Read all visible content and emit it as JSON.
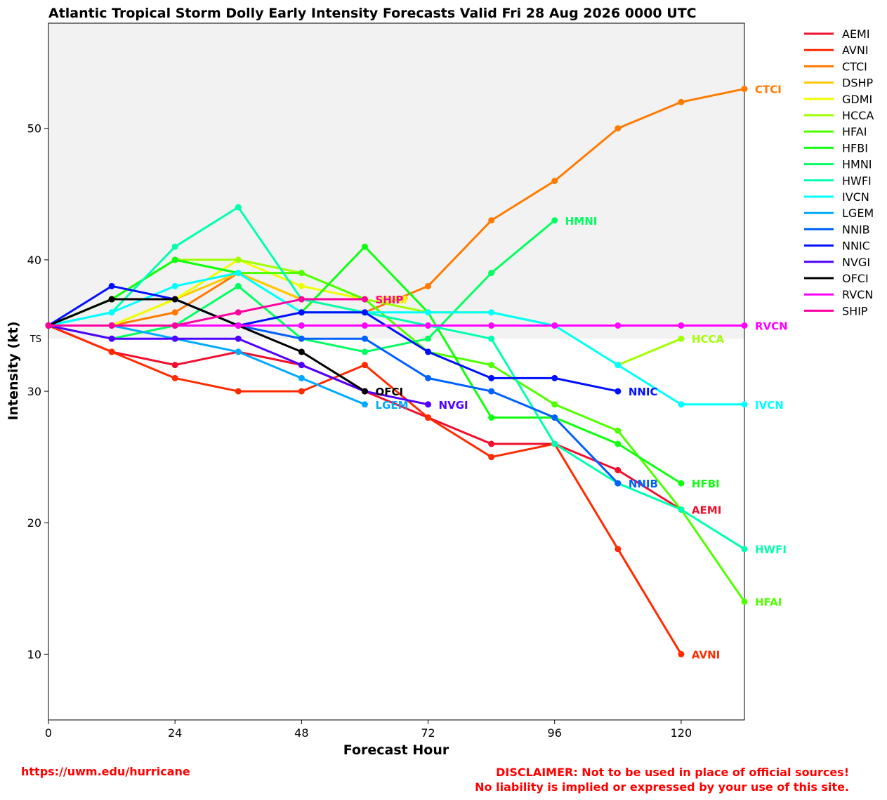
{
  "chart_data": {
    "type": "line",
    "title": "Atlantic Tropical Storm Dolly Early Intensity Forecasts Valid Fri 28 Aug 2026 0000 UTC",
    "xlabel": "Forecast Hour",
    "ylabel": "Intensity (kt)",
    "xlim": [
      0,
      132
    ],
    "ylim": [
      5,
      58
    ],
    "xticks": [
      0,
      24,
      48,
      72,
      96,
      120
    ],
    "yticks": [
      10,
      20,
      30,
      40,
      50
    ],
    "ts_threshold": 34,
    "ts_label": "TS",
    "shaded_region": "tropical storm range (34 kt and above)",
    "grid": false,
    "legend_position": "right, outside plot",
    "series": [
      {
        "name": "AEMI",
        "color": "#f0102e",
        "label_pos": "end",
        "x": [
          0,
          12,
          24,
          36,
          48,
          60,
          72,
          84,
          96,
          108,
          120
        ],
        "y": [
          35,
          33,
          32,
          33,
          32,
          30,
          28,
          26,
          26,
          24,
          21
        ]
      },
      {
        "name": "AVNI",
        "color": "#ff2a00",
        "label_pos": "end",
        "x": [
          0,
          12,
          24,
          36,
          48,
          60,
          72,
          84,
          96,
          108,
          120
        ],
        "y": [
          35,
          33,
          31,
          30,
          30,
          32,
          28,
          25,
          26,
          18,
          10
        ]
      },
      {
        "name": "CTCI",
        "color": "#ff7a00",
        "label_pos": "end",
        "x": [
          0,
          12,
          24,
          36,
          48,
          60,
          72,
          84,
          96,
          108,
          120,
          132
        ],
        "y": [
          35,
          35,
          36,
          39,
          37,
          36,
          38,
          43,
          46,
          50,
          52,
          53
        ]
      },
      {
        "name": "DSHP",
        "color": "#ffc800",
        "label_pos": "end",
        "x": [
          0,
          12,
          24,
          36,
          48,
          60
        ],
        "y": [
          35,
          35,
          37,
          39,
          37,
          37
        ]
      },
      {
        "name": "GDMI",
        "color": "#f0ff00",
        "label_pos": "end",
        "x": [
          0,
          12,
          24,
          36,
          48,
          60
        ],
        "y": [
          35,
          35,
          37,
          40,
          38,
          37
        ]
      },
      {
        "name": "HCCA",
        "color": "#a0ff00",
        "label_pos": "end",
        "x": [
          0,
          12,
          24,
          36,
          48,
          60,
          72,
          84,
          96,
          108,
          120
        ],
        "y": [
          35,
          37,
          40,
          40,
          39,
          37,
          36,
          36,
          35,
          32,
          34
        ]
      },
      {
        "name": "HFAI",
        "color": "#50ff00",
        "label_pos": "end",
        "x": [
          0,
          12,
          24,
          36,
          48,
          60,
          72,
          84,
          96,
          108,
          120,
          132
        ],
        "y": [
          35,
          37,
          40,
          39,
          39,
          37,
          33,
          32,
          29,
          27,
          21,
          14
        ]
      },
      {
        "name": "HFBI",
        "color": "#10ff10",
        "label_pos": "end",
        "x": [
          0,
          12,
          24,
          36,
          48,
          60,
          72,
          84,
          96,
          108,
          120
        ],
        "y": [
          35,
          37,
          40,
          39,
          36,
          41,
          36,
          28,
          28,
          26,
          23
        ]
      },
      {
        "name": "HMNI",
        "color": "#00ff60",
        "label_pos": "end",
        "x": [
          0,
          12,
          24,
          36,
          48,
          60,
          72,
          84,
          96
        ],
        "y": [
          35,
          34,
          35,
          38,
          34,
          33,
          34,
          39,
          43
        ]
      },
      {
        "name": "HWFI",
        "color": "#00ffb0",
        "label_pos": "end",
        "x": [
          0,
          12,
          24,
          36,
          48,
          60,
          72,
          84,
          96,
          108,
          120,
          132
        ],
        "y": [
          35,
          36,
          41,
          44,
          37,
          36,
          35,
          34,
          26,
          23,
          21,
          18
        ]
      },
      {
        "name": "IVCN",
        "color": "#00ffff",
        "label_pos": "end",
        "x": [
          0,
          12,
          24,
          36,
          48,
          60,
          72,
          84,
          96,
          108,
          120,
          132
        ],
        "y": [
          35,
          36,
          38,
          39,
          36,
          36,
          36,
          36,
          35,
          32,
          29,
          29
        ]
      },
      {
        "name": "LGEM",
        "color": "#00aaff",
        "label_pos": "end",
        "x": [
          0,
          12,
          24,
          36,
          48,
          60
        ],
        "y": [
          35,
          35,
          34,
          33,
          31,
          29
        ]
      },
      {
        "name": "NNIB",
        "color": "#0060ff",
        "label_pos": "end",
        "x": [
          0,
          12,
          24,
          36,
          48,
          60,
          72,
          84,
          96,
          108
        ],
        "y": [
          35,
          35,
          35,
          35,
          34,
          34,
          31,
          30,
          28,
          23
        ]
      },
      {
        "name": "NNIC",
        "color": "#0010ff",
        "label_pos": "end",
        "x": [
          0,
          12,
          24,
          36,
          48,
          60,
          72,
          84,
          96,
          108
        ],
        "y": [
          35,
          38,
          37,
          35,
          36,
          36,
          33,
          31,
          31,
          30
        ]
      },
      {
        "name": "NVGI",
        "color": "#5000ff",
        "label_pos": "end",
        "x": [
          0,
          12,
          24,
          36,
          48,
          60,
          72
        ],
        "y": [
          35,
          34,
          34,
          34,
          32,
          30,
          29
        ]
      },
      {
        "name": "OFCI",
        "color": "#000000",
        "label_pos": "end",
        "x": [
          0,
          12,
          24,
          36,
          48,
          60
        ],
        "y": [
          35,
          37,
          37,
          35,
          33,
          30
        ]
      },
      {
        "name": "RVCN",
        "color": "#ff00ff",
        "label_pos": "end",
        "x": [
          0,
          12,
          24,
          36,
          48,
          60,
          72,
          84,
          96,
          108,
          120,
          132
        ],
        "y": [
          35,
          35,
          35,
          35,
          35,
          35,
          35,
          35,
          35,
          35,
          35,
          35
        ]
      },
      {
        "name": "SHIP",
        "color": "#ff00a0",
        "label_pos": "end",
        "x": [
          0,
          12,
          24,
          36,
          48,
          60
        ],
        "y": [
          35,
          35,
          35,
          36,
          37,
          37
        ]
      }
    ]
  },
  "footer": {
    "url": "https://uwm.edu/hurricane",
    "disclaimer_line1": "DISCLAIMER: Not to be used in place of official sources!",
    "disclaimer_line2": "No liability is implied or expressed by your use of this site."
  }
}
